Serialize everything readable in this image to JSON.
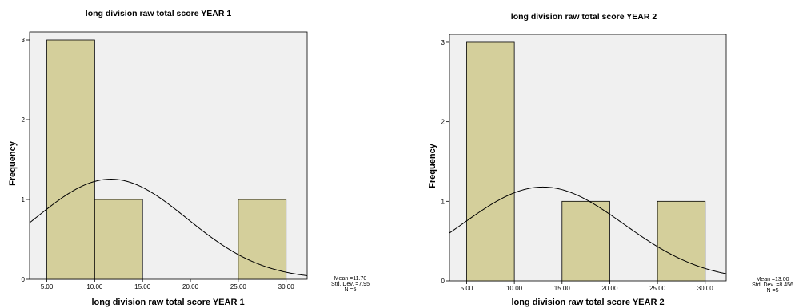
{
  "chart_data": [
    {
      "type": "histogram",
      "title": "long division raw total score YEAR 1",
      "xlabel": "long division raw total score YEAR 1",
      "ylabel": "Frequency",
      "xlim": [
        3.2,
        32.2
      ],
      "ylim": [
        0,
        3.1
      ],
      "x_ticks": [
        "5.00",
        "10.00",
        "15.00",
        "20.00",
        "25.00",
        "30.00"
      ],
      "y_ticks": [
        "0",
        "1",
        "2",
        "3"
      ],
      "bins": [
        {
          "start": 5,
          "end": 10,
          "count": 3
        },
        {
          "start": 10,
          "end": 15,
          "count": 1
        },
        {
          "start": 15,
          "end": 20,
          "count": 0
        },
        {
          "start": 20,
          "end": 25,
          "count": 0
        },
        {
          "start": 25,
          "end": 30,
          "count": 1
        }
      ],
      "normal_curve": {
        "mean": 11.7,
        "sd": 7.95,
        "n": 5,
        "bin_width": 5
      },
      "stats": [
        "Mean =11.70",
        "Std. Dev. =7.95",
        "N =5"
      ],
      "grid": false,
      "bar_color": "#d4cf9b",
      "plot_bg": "#f0f0f0"
    },
    {
      "type": "histogram",
      "title": "long division raw total score YEAR 2",
      "xlabel": "long division raw total score YEAR 2",
      "ylabel": "Frequency",
      "xlim": [
        3.2,
        32.2
      ],
      "ylim": [
        0,
        3.1
      ],
      "x_ticks": [
        "5.00",
        "10.00",
        "15.00",
        "20.00",
        "25.00",
        "30.00"
      ],
      "y_ticks": [
        "0",
        "1",
        "2",
        "3"
      ],
      "bins": [
        {
          "start": 5,
          "end": 10,
          "count": 3
        },
        {
          "start": 10,
          "end": 15,
          "count": 0
        },
        {
          "start": 15,
          "end": 20,
          "count": 1
        },
        {
          "start": 20,
          "end": 25,
          "count": 0
        },
        {
          "start": 25,
          "end": 30,
          "count": 1
        }
      ],
      "normal_curve": {
        "mean": 13.0,
        "sd": 8.456,
        "n": 5,
        "bin_width": 5
      },
      "stats": [
        "Mean =13.00",
        "Std. Dev. =8.456",
        "N =5"
      ],
      "grid": false,
      "bar_color": "#d4cf9b",
      "plot_bg": "#f0f0f0"
    }
  ]
}
